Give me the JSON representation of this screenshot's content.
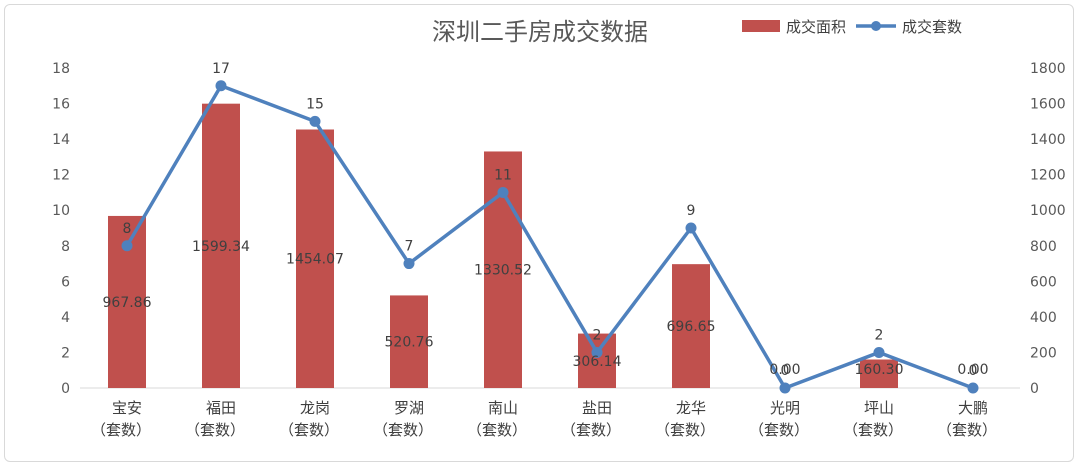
{
  "chart_data": {
    "type": "bar",
    "title": "深圳二手房成交数据",
    "categories": [
      "宝安",
      "福田",
      "龙岗",
      "罗湖",
      "南山",
      "盐田",
      "龙华",
      "光明",
      "坪山",
      "大鹏"
    ],
    "category_sublabel": "（套数）",
    "series": [
      {
        "name": "成交面积",
        "type": "bar",
        "axis": "right",
        "color": "#c0504d",
        "values": [
          967.86,
          1599.34,
          1454.07,
          520.76,
          1330.52,
          306.14,
          696.65,
          0.0,
          160.3,
          0.0
        ],
        "labels": [
          "967.86",
          "1599.34",
          "1454.07",
          "520.76",
          "1330.52",
          "306.14",
          "696.65",
          "0.00",
          "160.30",
          "0.00"
        ]
      },
      {
        "name": "成交套数",
        "type": "line",
        "axis": "left",
        "color": "#4f81bd",
        "values": [
          8,
          17,
          15,
          7,
          11,
          2,
          9,
          0,
          2,
          0
        ],
        "labels": [
          "8",
          "17",
          "15",
          "7",
          "11",
          "2",
          "9",
          "0",
          "2",
          "0"
        ]
      }
    ],
    "left_axis": {
      "ylim": [
        0,
        18
      ],
      "ticks": [
        "0",
        "2",
        "4",
        "6",
        "8",
        "10",
        "12",
        "14",
        "16",
        "18"
      ]
    },
    "right_axis": {
      "ylim": [
        0,
        1800
      ],
      "ticks": [
        "0",
        "200",
        "400",
        "600",
        "800",
        "1000",
        "1200",
        "1400",
        "1600",
        "1800"
      ]
    },
    "grid": false,
    "legend_position": "top-right"
  }
}
